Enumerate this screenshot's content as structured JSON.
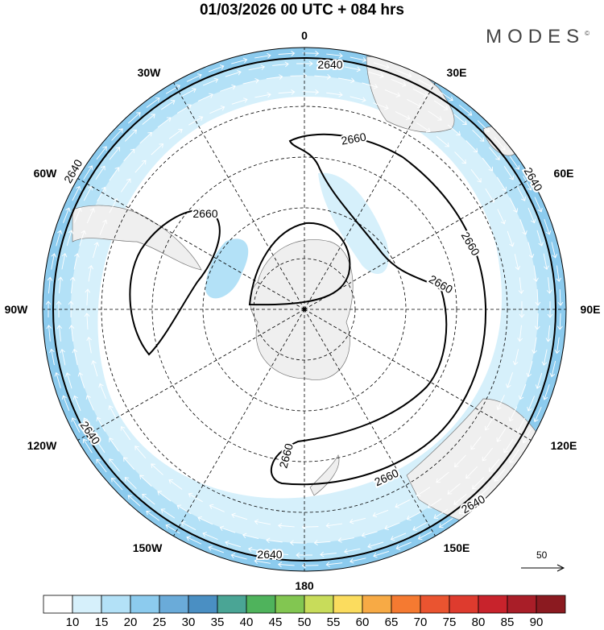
{
  "title": "01/03/2026  00 UTC  + 084 hrs",
  "logo": "MODES",
  "logo_mark": "©",
  "longitude_labels": [
    "0",
    "30E",
    "60E",
    "90E",
    "120E",
    "150E",
    "180",
    "150W",
    "120W",
    "90W",
    "60W",
    "30W"
  ],
  "contours": {
    "outer": "2640",
    "inner": "2660"
  },
  "vector_reference": "50",
  "colorbar": {
    "labels": [
      "10",
      "15",
      "20",
      "25",
      "30",
      "35",
      "40",
      "45",
      "50",
      "55",
      "60",
      "65",
      "70",
      "75",
      "80",
      "85",
      "90"
    ],
    "colors": [
      "#ffffff",
      "#d6f0fb",
      "#b3e1f7",
      "#8ccbee",
      "#6aabd9",
      "#4a8fc3",
      "#4aa595",
      "#4fb35c",
      "#82c651",
      "#c8dc5a",
      "#fbdc5e",
      "#f7aa45",
      "#f57a31",
      "#ea5430",
      "#de3b2e",
      "#c8232c",
      "#a91e28",
      "#8b1a20"
    ]
  }
}
